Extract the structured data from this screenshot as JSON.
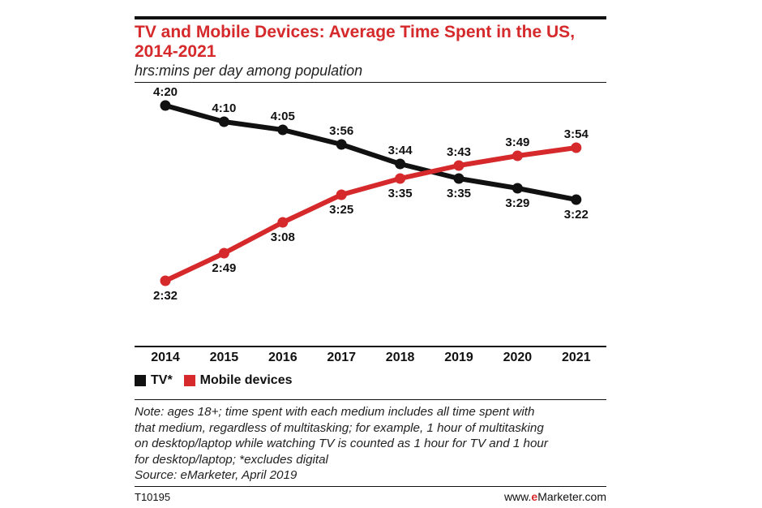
{
  "header": {
    "title": "TV and Mobile Devices: Average Time Spent in the US, 2014-2021",
    "subtitle": "hrs:mins per day among population"
  },
  "chart_data": {
    "type": "line",
    "title": "TV and Mobile Devices: Average Time Spent in the US, 2014-2021",
    "ylabel": "hrs:mins per day among population",
    "categories": [
      "2014",
      "2015",
      "2016",
      "2017",
      "2018",
      "2019",
      "2020",
      "2021"
    ],
    "ylim": [
      120,
      270
    ],
    "series": [
      {
        "name": "TV*",
        "color": "#111111",
        "values": [
          260,
          250,
          245,
          236,
          224,
          215,
          209,
          202
        ],
        "labels": [
          "4:20",
          "4:10",
          "4:05",
          "3:56",
          "3:44",
          "3:35",
          "3:29",
          "3:22"
        ]
      },
      {
        "name": "Mobile devices",
        "color": "#d6292b",
        "values": [
          152,
          169,
          188,
          205,
          215,
          223,
          229,
          234
        ],
        "labels": [
          "2:32",
          "2:49",
          "3:08",
          "3:25",
          "3:35",
          "3:43",
          "3:49",
          "3:54"
        ]
      }
    ]
  },
  "legend": {
    "tv_label": "TV*",
    "mobile_label": "Mobile devices"
  },
  "note": {
    "line1": "Note: ages 18+; time spent with each medium includes all time spent with",
    "line2": "that medium, regardless of multitasking; for example, 1 hour of multitasking",
    "line3": "on desktop/laptop while watching TV is counted as 1 hour for TV and 1 hour",
    "line4": "for desktop/laptop; *excludes digital",
    "source": "Source: eMarketer, April 2019"
  },
  "footer": {
    "code": "T10195",
    "brand_prefix": "www.",
    "brand_e": "e",
    "brand_rest": "Marketer.com"
  }
}
